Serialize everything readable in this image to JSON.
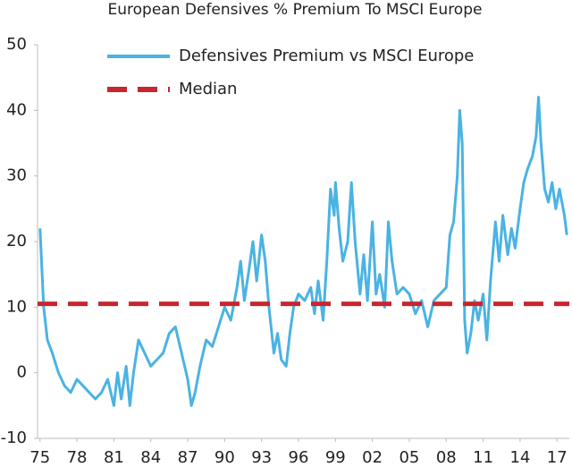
{
  "chart_data": {
    "type": "line",
    "title": "European Defensives % Premium To MSCI Europe",
    "x": [
      1975.0,
      1975.3,
      1975.6,
      1976.0,
      1976.5,
      1977.0,
      1977.5,
      1978.0,
      1978.5,
      1979.0,
      1979.5,
      1980.0,
      1980.5,
      1981.0,
      1981.3,
      1981.6,
      1982.0,
      1982.3,
      1982.6,
      1983.0,
      1983.5,
      1984.0,
      1984.5,
      1985.0,
      1985.5,
      1986.0,
      1986.5,
      1987.0,
      1987.3,
      1987.6,
      1988.0,
      1988.5,
      1989.0,
      1989.5,
      1990.0,
      1990.5,
      1991.0,
      1991.3,
      1991.6,
      1992.0,
      1992.3,
      1992.6,
      1993.0,
      1993.3,
      1993.6,
      1994.0,
      1994.3,
      1994.6,
      1995.0,
      1995.3,
      1995.6,
      1996.0,
      1996.5,
      1997.0,
      1997.3,
      1997.6,
      1998.0,
      1998.3,
      1998.6,
      1998.9,
      1999.0,
      1999.3,
      1999.6,
      2000.0,
      2000.3,
      2000.6,
      2001.0,
      2001.3,
      2001.6,
      2002.0,
      2002.3,
      2002.6,
      2003.0,
      2003.3,
      2003.6,
      2004.0,
      2004.5,
      2005.0,
      2005.5,
      2006.0,
      2006.5,
      2007.0,
      2007.5,
      2008.0,
      2008.3,
      2008.6,
      2008.9,
      2009.1,
      2009.3,
      2009.5,
      2009.7,
      2010.0,
      2010.3,
      2010.6,
      2011.0,
      2011.3,
      2011.6,
      2012.0,
      2012.3,
      2012.6,
      2013.0,
      2013.3,
      2013.6,
      2014.0,
      2014.3,
      2014.6,
      2015.0,
      2015.3,
      2015.5,
      2015.7,
      2016.0,
      2016.3,
      2016.6,
      2016.9,
      2017.2,
      2017.6,
      2017.8
    ],
    "series": [
      {
        "name": "Defensives Premium vs MSCI Europe",
        "color": "#4ab3e2",
        "values": [
          22,
          10,
          5,
          3,
          0,
          -2,
          -3,
          -1,
          -2,
          -3,
          -4,
          -3,
          -1,
          -5,
          0,
          -4,
          1,
          -5,
          0,
          5,
          3,
          1,
          2,
          3,
          6,
          7,
          3,
          -1,
          -5,
          -3,
          1,
          5,
          4,
          7,
          10,
          8,
          13,
          17,
          11,
          16,
          20,
          14,
          21,
          17,
          10,
          3,
          6,
          2,
          1,
          6,
          10,
          12,
          11,
          13,
          9,
          14,
          8,
          17,
          28,
          24,
          29,
          22,
          17,
          20,
          29,
          20,
          12,
          18,
          11,
          23,
          12,
          15,
          10,
          23,
          17,
          12,
          13,
          12,
          9,
          11,
          7,
          11,
          12,
          13,
          21,
          23,
          30,
          40,
          35,
          8,
          3,
          6,
          11,
          8,
          12,
          5,
          14,
          23,
          17,
          24,
          18,
          22,
          19,
          25,
          29,
          31,
          33,
          36,
          42,
          35,
          28,
          26,
          29,
          25,
          28,
          24,
          21
        ]
      },
      {
        "name": "Median",
        "color": "#c8262e",
        "dashed": true,
        "constant": 10.5
      }
    ],
    "xlim": [
      1974.8,
      2018.0
    ],
    "xticks": [
      {
        "value": 1975,
        "label": "75"
      },
      {
        "value": 1978,
        "label": "78"
      },
      {
        "value": 1981,
        "label": "81"
      },
      {
        "value": 1984,
        "label": "84"
      },
      {
        "value": 1987,
        "label": "87"
      },
      {
        "value": 1990,
        "label": "90"
      },
      {
        "value": 1993,
        "label": "93"
      },
      {
        "value": 1996,
        "label": "96"
      },
      {
        "value": 1999,
        "label": "99"
      },
      {
        "value": 2002,
        "label": "02"
      },
      {
        "value": 2005,
        "label": "05"
      },
      {
        "value": 2008,
        "label": "08"
      },
      {
        "value": 2011,
        "label": "11"
      },
      {
        "value": 2014,
        "label": "14"
      },
      {
        "value": 2017,
        "label": "17"
      }
    ],
    "ylim": [
      -10,
      50
    ],
    "yticks": [
      -10,
      0,
      10,
      20,
      30,
      40,
      50
    ],
    "grid": false,
    "legend": "upper-left"
  }
}
